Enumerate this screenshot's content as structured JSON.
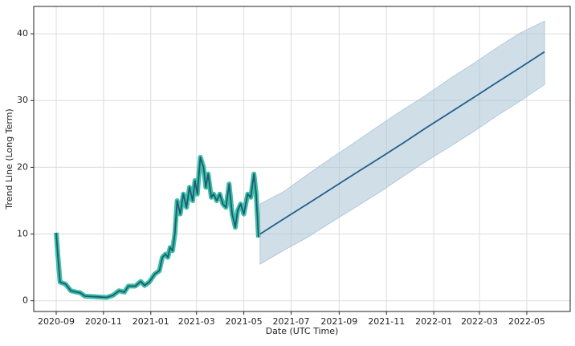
{
  "chart_data": {
    "type": "line",
    "xlabel": "Date (UTC Time)",
    "ylabel": "Trend Line (Long Term)",
    "xlim": [
      "2020-08-03",
      "2022-06-26"
    ],
    "xticks": [
      "2020-09",
      "2020-11",
      "2021-01",
      "2021-03",
      "2021-05",
      "2021-07",
      "2021-09",
      "2021-11",
      "2022-01",
      "2022-03",
      "2022-05"
    ],
    "ylim": [
      -1.6,
      44.1
    ],
    "yticks": [
      0,
      10,
      20,
      30,
      40
    ],
    "grid": true,
    "series": [
      {
        "color": "#1f5a7a",
        "outline": "#3cc0a2",
        "x": [
          "2020-09-01",
          "2020-09-03",
          "2020-09-06",
          "2020-09-13",
          "2020-09-20",
          "2020-09-27",
          "2020-10-02",
          "2020-10-08",
          "2020-10-23",
          "2020-11-05",
          "2020-11-13",
          "2020-11-21",
          "2020-11-28",
          "2020-12-03",
          "2020-12-12",
          "2020-12-19",
          "2020-12-24",
          "2020-12-30",
          "2021-01-06",
          "2021-01-12",
          "2021-01-16",
          "2021-01-20",
          "2021-01-23",
          "2021-01-26",
          "2021-01-29",
          "2021-02-01",
          "2021-02-04",
          "2021-02-08",
          "2021-02-12",
          "2021-02-16",
          "2021-02-20",
          "2021-02-24",
          "2021-02-27",
          "2021-03-02",
          "2021-03-06",
          "2021-03-10",
          "2021-03-13",
          "2021-03-16",
          "2021-03-20",
          "2021-03-23",
          "2021-03-27",
          "2021-03-31",
          "2021-04-04",
          "2021-04-08",
          "2021-04-12",
          "2021-04-16",
          "2021-04-20",
          "2021-04-23",
          "2021-04-27",
          "2021-05-01",
          "2021-05-06",
          "2021-05-10",
          "2021-05-14",
          "2021-05-17",
          "2021-05-20"
        ],
        "values": [
          10.2,
          7,
          2.8,
          2.5,
          1.5,
          1.3,
          1.2,
          0.7,
          0.6,
          0.5,
          0.8,
          1.5,
          1.3,
          2.2,
          2.2,
          2.9,
          2.3,
          2.8,
          4,
          4.5,
          6.5,
          7,
          6.5,
          8,
          7.5,
          10,
          15,
          13,
          16,
          14,
          17,
          15,
          18,
          16,
          21.5,
          20,
          17,
          19,
          15.5,
          16,
          15,
          16,
          14.5,
          14,
          17.5,
          13,
          11,
          13.5,
          14.5,
          13,
          16,
          15.5,
          19,
          16,
          9.5
        ]
      },
      {
        "color": "#1f5f8b",
        "band_color": "#a9c2d6",
        "x": [
          "2021-05-22",
          "2021-06-22",
          "2021-07-22",
          "2021-08-22",
          "2021-09-22",
          "2021-10-22",
          "2021-11-22",
          "2021-12-22",
          "2022-01-22",
          "2022-02-22",
          "2022-03-22",
          "2022-04-22",
          "2022-05-24"
        ],
        "values": [
          10.0,
          12.3,
          14.5,
          16.8,
          19.1,
          21.3,
          23.6,
          25.9,
          28.2,
          30.5,
          32.6,
          34.9,
          37.3
        ],
        "lower": [
          5.5,
          7.6,
          9.5,
          11.8,
          14.0,
          16.2,
          18.6,
          20.9,
          23.1,
          25.4,
          27.6,
          29.9,
          32.4
        ],
        "upper": [
          14.5,
          16.4,
          18.9,
          21.4,
          23.8,
          26.2,
          28.6,
          30.8,
          33.3,
          35.6,
          37.8,
          40.1,
          41.9
        ]
      }
    ]
  }
}
